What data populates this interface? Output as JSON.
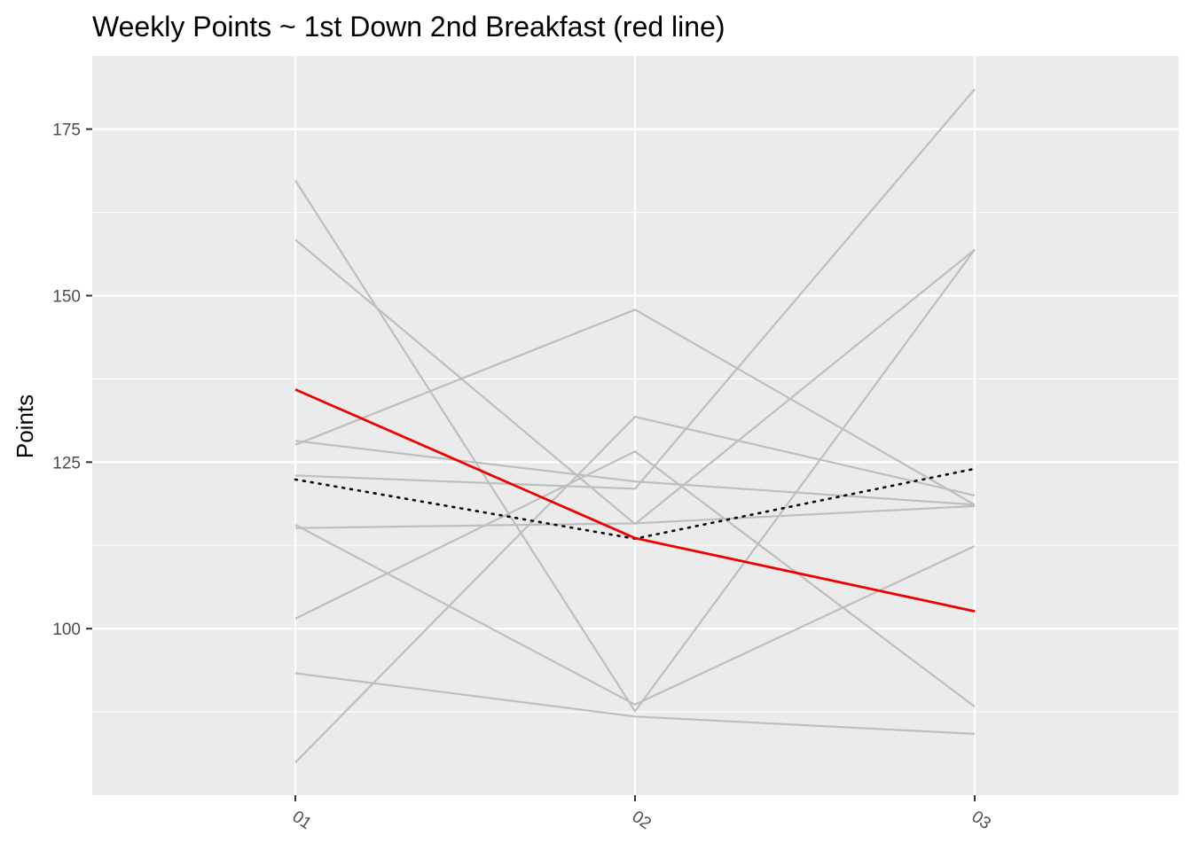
{
  "chart_data": {
    "type": "line",
    "title": "Weekly Points ~ 1st Down 2nd Breakfast (red line)",
    "xlabel": "",
    "ylabel": "Points",
    "categories": [
      "01",
      "02",
      "03"
    ],
    "ylim": [
      75,
      186
    ],
    "yticks": [
      100,
      125,
      150,
      175
    ],
    "grid": true,
    "legend": "none",
    "colors": {
      "panel": "#ebebeb",
      "grid": "#ffffff",
      "other_teams": "#bebebe",
      "highlight": "#ee0000",
      "average": "#000000",
      "tick_text": "#4d4d4d"
    },
    "series": [
      {
        "values": [
          167.3,
          87.6,
          156.9
        ],
        "style": "other"
      },
      {
        "values": [
          158.4,
          115.7,
          156.9
        ],
        "style": "other"
      },
      {
        "values": [
          127.6,
          147.9,
          118.6
        ],
        "style": "other"
      },
      {
        "values": [
          128.2,
          122.1,
          118.6
        ],
        "style": "other"
      },
      {
        "values": [
          115.1,
          115.8,
          118.4
        ],
        "style": "other"
      },
      {
        "values": [
          115.6,
          88.6,
          112.4
        ],
        "style": "other"
      },
      {
        "values": [
          101.5,
          126.6,
          88.3
        ],
        "style": "other"
      },
      {
        "values": [
          93.3,
          86.8,
          84.2
        ],
        "style": "other"
      },
      {
        "values": [
          79.9,
          131.8,
          120.0
        ],
        "style": "other"
      },
      {
        "values": [
          123.0,
          121.0,
          181.0
        ],
        "style": "other"
      },
      {
        "values": [
          135.9,
          113.6,
          102.6
        ],
        "style": "highlight"
      },
      {
        "values": [
          122.4,
          113.5,
          124.0
        ],
        "style": "average"
      }
    ]
  }
}
